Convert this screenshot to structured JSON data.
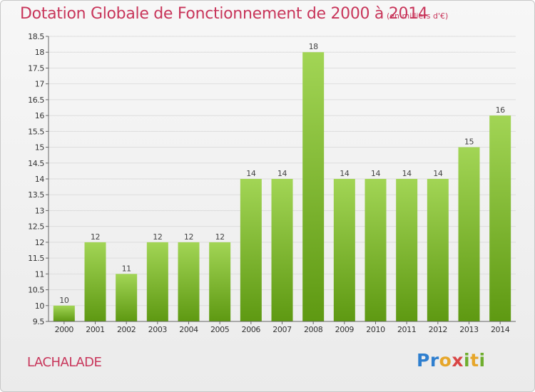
{
  "header": {
    "title": "Dotation Globale de Fonctionnement de 2000 à 2014",
    "subtitle": "(en milliers d'€)"
  },
  "footer": {
    "commune": "LACHALADE",
    "logo_text": "Proxiti"
  },
  "colors": {
    "title": "#c8355a",
    "bar_light": "#a2d555",
    "bar_dark": "#5e9912",
    "grid": "#dddddd",
    "axis": "#666666"
  },
  "chart_data": {
    "type": "bar",
    "categories": [
      "2000",
      "2001",
      "2002",
      "2003",
      "2004",
      "2005",
      "2006",
      "2007",
      "2008",
      "2009",
      "2010",
      "2011",
      "2012",
      "2013",
      "2014"
    ],
    "values": [
      10,
      12,
      11,
      12,
      12,
      12,
      14,
      14,
      18,
      14,
      14,
      14,
      14,
      15,
      16
    ],
    "value_labels": [
      "10",
      "12",
      "11",
      "12",
      "12",
      "12",
      "14",
      "14",
      "18",
      "14",
      "14",
      "14",
      "14",
      "15",
      "16"
    ],
    "title": "Dotation Globale de Fonctionnement de 2000 à 2014",
    "subtitle": "(en milliers d'€)",
    "xlabel": "",
    "ylabel": "",
    "ylim": [
      9.5,
      18.5
    ],
    "yticks": [
      9.5,
      10,
      10.5,
      11,
      11.5,
      12,
      12.5,
      13,
      13.5,
      14,
      14.5,
      15,
      15.5,
      16,
      16.5,
      17,
      17.5,
      18,
      18.5
    ],
    "ytick_labels": [
      "9.5",
      "10",
      "10.5",
      "11",
      "11.5",
      "12",
      "12.5",
      "13",
      "13.5",
      "14",
      "14.5",
      "15",
      "15.5",
      "16",
      "16.5",
      "17",
      "17.5",
      "18",
      "18.5"
    ],
    "grid": true,
    "legend": "none"
  }
}
